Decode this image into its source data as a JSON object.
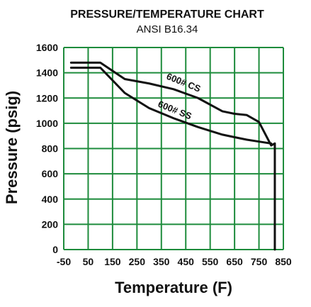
{
  "chart_data": {
    "type": "line",
    "title": "PRESSURE/TEMPERATURE CHART",
    "subtitle": "ANSI B16.34",
    "xlabel": "Temperature (F)",
    "ylabel": "Pressure (psig)",
    "x_ticks": [
      -50,
      50,
      150,
      250,
      350,
      450,
      550,
      650,
      750,
      850
    ],
    "y_ticks": [
      0,
      200,
      400,
      600,
      800,
      1000,
      1200,
      1400,
      1600
    ],
    "xlim": [
      -50,
      850
    ],
    "ylim": [
      0,
      1600
    ],
    "grid": true,
    "grid_color": "#1e8c3c",
    "line_color": "#111111",
    "series": [
      {
        "name": "600# CS",
        "x": [
          -20,
          100,
          200,
          300,
          400,
          500,
          600,
          650,
          700,
          750,
          800
        ],
        "y": [
          1480,
          1480,
          1350,
          1315,
          1270,
          1200,
          1095,
          1075,
          1065,
          1010,
          825
        ]
      },
      {
        "name": "600# SS",
        "x": [
          -20,
          100,
          200,
          300,
          400,
          500,
          600,
          650,
          700,
          750,
          800
        ],
        "y": [
          1440,
          1440,
          1240,
          1120,
          1040,
          970,
          910,
          890,
          870,
          855,
          840
        ]
      }
    ],
    "drop_line": {
      "x": 815,
      "y_from": 840,
      "y_to": 0
    }
  }
}
